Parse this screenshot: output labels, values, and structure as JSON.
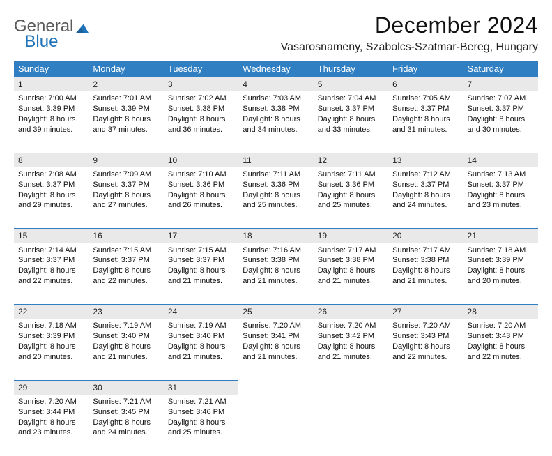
{
  "brand": {
    "part1": "General",
    "part2": "Blue"
  },
  "title": "December 2024",
  "location": "Vasarosnameny, Szabolcs-Szatmar-Bereg, Hungary",
  "colors": {
    "header_bg": "#2f7fc2",
    "header_fg": "#ffffff",
    "daynum_bg": "#e9e9e9",
    "rule": "#2f7fc2",
    "brand_gray": "#5a5a5a",
    "brand_blue": "#2073b8"
  },
  "weekdays": [
    "Sunday",
    "Monday",
    "Tuesday",
    "Wednesday",
    "Thursday",
    "Friday",
    "Saturday"
  ],
  "weeks": [
    [
      {
        "n": "1",
        "sr": "7:00 AM",
        "ss": "3:39 PM",
        "dl": "8 hours and 39 minutes."
      },
      {
        "n": "2",
        "sr": "7:01 AM",
        "ss": "3:39 PM",
        "dl": "8 hours and 37 minutes."
      },
      {
        "n": "3",
        "sr": "7:02 AM",
        "ss": "3:38 PM",
        "dl": "8 hours and 36 minutes."
      },
      {
        "n": "4",
        "sr": "7:03 AM",
        "ss": "3:38 PM",
        "dl": "8 hours and 34 minutes."
      },
      {
        "n": "5",
        "sr": "7:04 AM",
        "ss": "3:37 PM",
        "dl": "8 hours and 33 minutes."
      },
      {
        "n": "6",
        "sr": "7:05 AM",
        "ss": "3:37 PM",
        "dl": "8 hours and 31 minutes."
      },
      {
        "n": "7",
        "sr": "7:07 AM",
        "ss": "3:37 PM",
        "dl": "8 hours and 30 minutes."
      }
    ],
    [
      {
        "n": "8",
        "sr": "7:08 AM",
        "ss": "3:37 PM",
        "dl": "8 hours and 29 minutes."
      },
      {
        "n": "9",
        "sr": "7:09 AM",
        "ss": "3:37 PM",
        "dl": "8 hours and 27 minutes."
      },
      {
        "n": "10",
        "sr": "7:10 AM",
        "ss": "3:36 PM",
        "dl": "8 hours and 26 minutes."
      },
      {
        "n": "11",
        "sr": "7:11 AM",
        "ss": "3:36 PM",
        "dl": "8 hours and 25 minutes."
      },
      {
        "n": "12",
        "sr": "7:11 AM",
        "ss": "3:36 PM",
        "dl": "8 hours and 25 minutes."
      },
      {
        "n": "13",
        "sr": "7:12 AM",
        "ss": "3:37 PM",
        "dl": "8 hours and 24 minutes."
      },
      {
        "n": "14",
        "sr": "7:13 AM",
        "ss": "3:37 PM",
        "dl": "8 hours and 23 minutes."
      }
    ],
    [
      {
        "n": "15",
        "sr": "7:14 AM",
        "ss": "3:37 PM",
        "dl": "8 hours and 22 minutes."
      },
      {
        "n": "16",
        "sr": "7:15 AM",
        "ss": "3:37 PM",
        "dl": "8 hours and 22 minutes."
      },
      {
        "n": "17",
        "sr": "7:15 AM",
        "ss": "3:37 PM",
        "dl": "8 hours and 21 minutes."
      },
      {
        "n": "18",
        "sr": "7:16 AM",
        "ss": "3:38 PM",
        "dl": "8 hours and 21 minutes."
      },
      {
        "n": "19",
        "sr": "7:17 AM",
        "ss": "3:38 PM",
        "dl": "8 hours and 21 minutes."
      },
      {
        "n": "20",
        "sr": "7:17 AM",
        "ss": "3:38 PM",
        "dl": "8 hours and 21 minutes."
      },
      {
        "n": "21",
        "sr": "7:18 AM",
        "ss": "3:39 PM",
        "dl": "8 hours and 20 minutes."
      }
    ],
    [
      {
        "n": "22",
        "sr": "7:18 AM",
        "ss": "3:39 PM",
        "dl": "8 hours and 20 minutes."
      },
      {
        "n": "23",
        "sr": "7:19 AM",
        "ss": "3:40 PM",
        "dl": "8 hours and 21 minutes."
      },
      {
        "n": "24",
        "sr": "7:19 AM",
        "ss": "3:40 PM",
        "dl": "8 hours and 21 minutes."
      },
      {
        "n": "25",
        "sr": "7:20 AM",
        "ss": "3:41 PM",
        "dl": "8 hours and 21 minutes."
      },
      {
        "n": "26",
        "sr": "7:20 AM",
        "ss": "3:42 PM",
        "dl": "8 hours and 21 minutes."
      },
      {
        "n": "27",
        "sr": "7:20 AM",
        "ss": "3:43 PM",
        "dl": "8 hours and 22 minutes."
      },
      {
        "n": "28",
        "sr": "7:20 AM",
        "ss": "3:43 PM",
        "dl": "8 hours and 22 minutes."
      }
    ],
    [
      {
        "n": "29",
        "sr": "7:20 AM",
        "ss": "3:44 PM",
        "dl": "8 hours and 23 minutes."
      },
      {
        "n": "30",
        "sr": "7:21 AM",
        "ss": "3:45 PM",
        "dl": "8 hours and 24 minutes."
      },
      {
        "n": "31",
        "sr": "7:21 AM",
        "ss": "3:46 PM",
        "dl": "8 hours and 25 minutes."
      },
      null,
      null,
      null,
      null
    ]
  ],
  "labels": {
    "sunrise": "Sunrise:",
    "sunset": "Sunset:",
    "daylight": "Daylight:"
  }
}
